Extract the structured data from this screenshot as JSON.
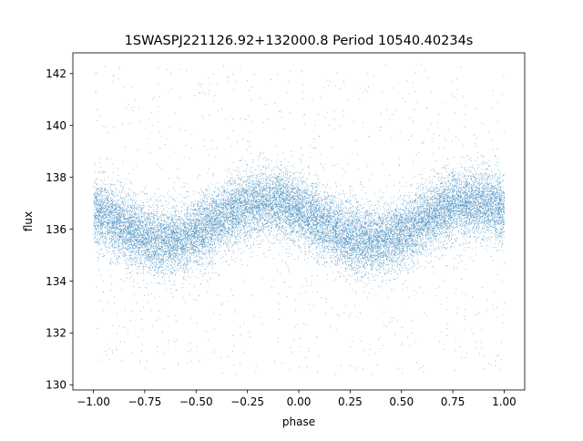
{
  "chart_data": {
    "type": "scatter",
    "title": "1SWASPJ221126.92+132000.8 Period 10540.40234s",
    "xlabel": "phase",
    "ylabel": "flux",
    "xlim": [
      -1.1,
      1.1
    ],
    "ylim": [
      129.8,
      142.8
    ],
    "xticks": [
      -1.0,
      -0.75,
      -0.5,
      -0.25,
      0.0,
      0.25,
      0.5,
      0.75,
      1.0
    ],
    "xtick_labels": [
      "−1.00",
      "−0.75",
      "−0.50",
      "−0.25",
      "0.00",
      "0.25",
      "0.50",
      "0.75",
      "1.00"
    ],
    "yticks": [
      130,
      132,
      134,
      136,
      138,
      140,
      142
    ],
    "ytick_labels": [
      "130",
      "132",
      "134",
      "136",
      "138",
      "140",
      "142"
    ],
    "grid": false,
    "legend": "none",
    "marker_color": "#1f77b4",
    "phase_range": [
      -1.0,
      1.0
    ],
    "model": {
      "description": "sinusoidal light curve, two cycles over the plotted phase range",
      "mean_flux": 136.3,
      "amplitude": 0.75,
      "peak_phases": [
        -0.15,
        0.85
      ],
      "trough_phases": [
        -0.6,
        0.4
      ],
      "core_scatter": 0.65,
      "outlier_flux_range": [
        130.4,
        142.4
      ]
    },
    "series": [
      {
        "phase": [
          -1.0,
          -0.9,
          -0.8,
          -0.7,
          -0.6,
          -0.5,
          -0.4,
          -0.3,
          -0.2,
          -0.15,
          -0.1,
          0.0,
          0.1,
          0.2,
          0.3,
          0.4,
          0.5,
          0.6,
          0.7,
          0.8,
          0.85,
          0.9,
          1.0
        ],
        "flux_center": [
          136.9,
          136.7,
          136.3,
          135.9,
          135.6,
          135.7,
          136.0,
          136.5,
          137.0,
          137.05,
          137.0,
          136.6,
          136.1,
          135.7,
          135.55,
          135.55,
          135.8,
          136.1,
          136.5,
          136.9,
          137.05,
          137.0,
          136.9
        ]
      }
    ]
  }
}
